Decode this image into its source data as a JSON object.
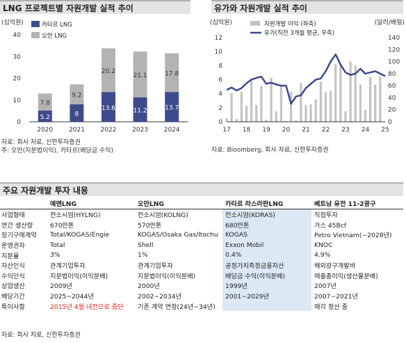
{
  "chart_data": [
    {
      "type": "bar",
      "stacked": true,
      "title": "LNG 프로젝트별 자원개발 실적 추이",
      "yunit": "(십억원)",
      "categories": [
        "2020",
        "2021",
        "2022",
        "2023",
        "2024"
      ],
      "ylim": [
        0,
        40
      ],
      "yticks": [
        0,
        10,
        20,
        30,
        40
      ],
      "grid": false,
      "legend_position": "top-left",
      "series": [
        {
          "name": "카타르 LNG",
          "color": "#3d4a8c",
          "values": [
            5.2,
            8,
            13.6,
            11.2,
            13.7
          ]
        },
        {
          "name": "오만 LNG",
          "color": "#b3b3b3",
          "values": [
            7.8,
            9.2,
            20.2,
            21.1,
            17.8
          ]
        }
      ],
      "notes": [
        "자료: 회사 자료, 신한투자증권",
        "주: 오만(지분법이익), 카타르(배당금 수익)"
      ]
    },
    {
      "type": "bar+line",
      "title": "유가와 자원개발 실적 추이",
      "y_left_unit": "(십억원)",
      "y_right_unit": "(달러/배럴)",
      "y_left_lim": [
        0,
        12
      ],
      "y_left_ticks": [
        0,
        2,
        4,
        6,
        8,
        10,
        12
      ],
      "y_right_lim": [
        0,
        140
      ],
      "y_right_ticks": [
        0,
        20,
        40,
        60,
        80,
        100,
        120,
        140
      ],
      "x_ticks": [
        "17",
        "18",
        "19",
        "20",
        "21",
        "22",
        "23",
        "24",
        "25"
      ],
      "grid": false,
      "legend_position": "top",
      "series": [
        {
          "name": "자원개발 이익 (좌축)",
          "type": "bar",
          "color": "#c3c3c3",
          "x": [
            17.0,
            17.25,
            17.5,
            17.75,
            18.0,
            18.25,
            18.5,
            18.75,
            19.0,
            19.25,
            19.5,
            19.75,
            20.0,
            20.25,
            20.5,
            20.75,
            21.0,
            21.25,
            21.5,
            21.75,
            22.0,
            22.25,
            22.5,
            22.75,
            23.0,
            23.25,
            23.5,
            23.75,
            24.0,
            24.25,
            24.5,
            24.75
          ],
          "values": [
            0.5,
            4.1,
            0.4,
            4.3,
            2.3,
            6.2,
            2.4,
            5.1,
            0.3,
            6.3,
            1.5,
            5.3,
            0.1,
            4.3,
            0.2,
            5.5,
            2.4,
            2.5,
            3.2,
            5.7,
            4.2,
            4.4,
            8.2,
            8.2,
            1.5,
            8.6,
            8.0,
            5.3,
            1.7,
            6.4,
            5.3,
            6.5
          ]
        },
        {
          "name": "유가(직전 3개월 평균, 우축)",
          "type": "line",
          "color": "#3d4a8c",
          "x": [
            17.0,
            17.25,
            17.5,
            17.75,
            18.0,
            18.25,
            18.5,
            18.75,
            19.0,
            19.25,
            19.5,
            19.75,
            20.0,
            20.25,
            20.5,
            20.75,
            21.0,
            21.25,
            21.5,
            21.75,
            22.0,
            22.25,
            22.5,
            22.75,
            23.0,
            23.25,
            23.5,
            23.75,
            24.0,
            24.25,
            24.5,
            24.75,
            25.0
          ],
          "values": [
            53,
            57,
            52,
            56,
            64,
            70,
            73,
            75,
            63,
            65,
            62,
            60,
            60,
            30,
            42,
            44,
            56,
            63,
            70,
            72,
            84,
            100,
            112,
            95,
            82,
            78,
            80,
            88,
            80,
            82,
            84,
            80,
            76
          ]
        }
      ],
      "notes": [
        "자료: Bloomberg, 회사 자료, 신한투자증권"
      ]
    }
  ],
  "table": {
    "title": "주요 자원개발 투자 내용",
    "columns": [
      "",
      "예멘LNG",
      "오만LNG",
      "카타르 라스라판LNG",
      "베트남 유전 11-2광구"
    ],
    "rows": [
      {
        "label": "사업형태",
        "cells": [
          "컨소시엄(HYLNG)",
          "컨소시엄(KOLNG)",
          "컨소시엄(KORAS)",
          "직접투자"
        ]
      },
      {
        "label": "연간 생산량",
        "cells": [
          "670만톤",
          "570만톤",
          "680만톤",
          "가스 45Bcf"
        ]
      },
      {
        "label": "장기구매계약",
        "cells": [
          "Total/KOGAS/Engie",
          "KOGAS/Osaka Gas/Itochu",
          "KOGAS",
          "Petro Vietnam(~2028년)"
        ]
      },
      {
        "label": "운영권자",
        "cells": [
          "Total",
          "Shell",
          "Exxon Mobil",
          "KNOC"
        ]
      },
      {
        "label": "지분율",
        "cells": [
          "3%",
          "1%",
          "0.4%",
          "4.9%"
        ]
      },
      {
        "label": "자산인식",
        "cells": [
          "관계기업투자",
          "관계기업투자",
          "공정가치측정금융자산",
          "해외광구개발비"
        ]
      },
      {
        "label": "수익인식",
        "cells": [
          "지분법이익(이익분배)",
          "지분법이익(이익분배)",
          "배당금 수익(이익분배)",
          "매출총이익(생산물분배)"
        ]
      },
      {
        "label": "상업생산",
        "cells": [
          "2009년",
          "2000년",
          "1999년",
          "2007년"
        ]
      },
      {
        "label": "배당기간",
        "cells": [
          "2025~2044년",
          "2002~2034년",
          "2001~2029년",
          "2007~2021년"
        ]
      },
      {
        "label": "특이사항",
        "cells": [
          "2015년 4월 내전으로 중단",
          "기존 계약 연장(24년~34년)",
          "",
          "매각 정산 중"
        ]
      }
    ],
    "note": "자료: 회사 자료, 신한투자증권"
  }
}
